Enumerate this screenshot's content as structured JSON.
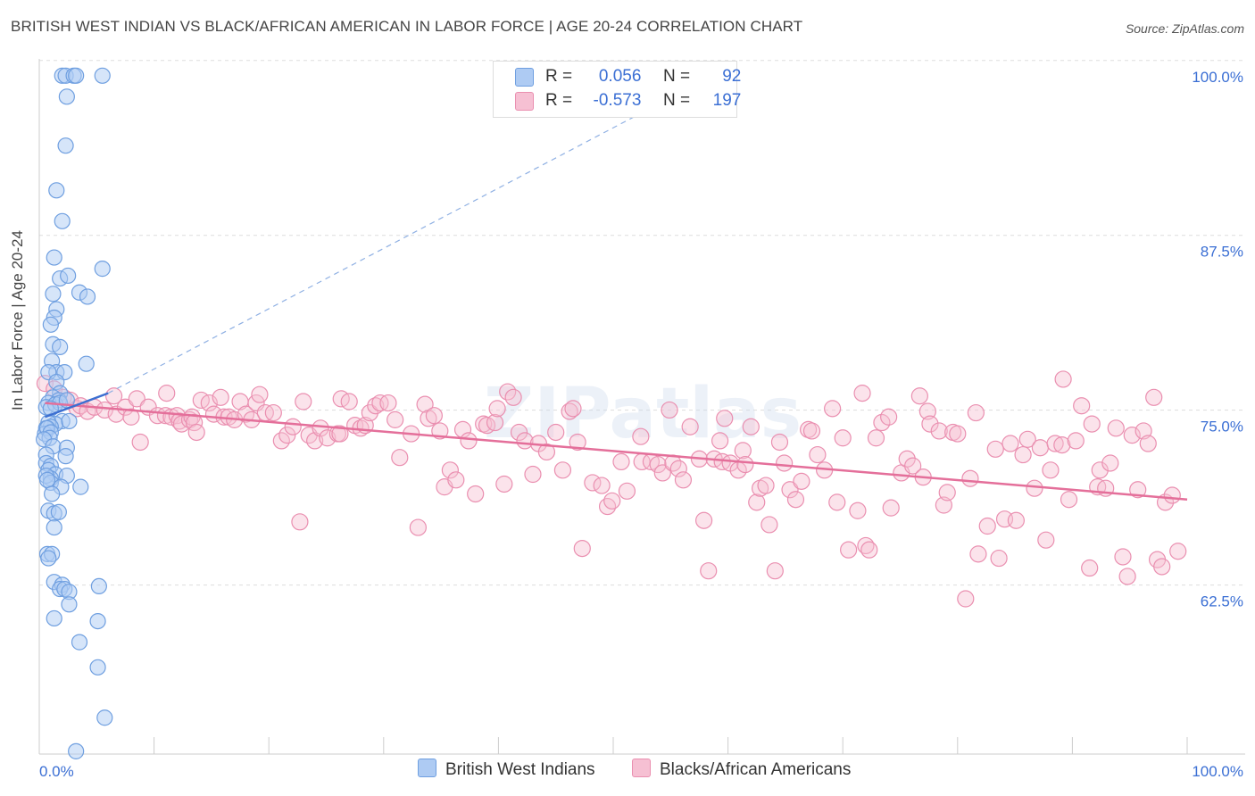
{
  "title": "BRITISH WEST INDIAN VS BLACK/AFRICAN AMERICAN IN LABOR FORCE | AGE 20-24 CORRELATION CHART",
  "source": "Source: ZipAtlas.com",
  "watermark": "ZIPatlas",
  "colors": {
    "blue_fill": "#aecbf3",
    "blue_stroke": "#6f9fe0",
    "blue_line": "#3c6fd1",
    "pink_fill": "#f6c0d3",
    "pink_stroke": "#ea8fb0",
    "pink_line": "#e46f9a",
    "axis_label": "#3b6fd4",
    "grid": "#dddddd"
  },
  "legend_top": [
    {
      "r_label": "R =",
      "r_value": "0.056",
      "n_label": "N =",
      "n_value": "92"
    },
    {
      "r_label": "R =",
      "r_value": "-0.573",
      "n_label": "N =",
      "n_value": "197"
    }
  ],
  "chart_data": {
    "type": "scatter",
    "xlabel": "",
    "ylabel": "In Labor Force | Age 20-24",
    "x_tick_labels": [
      "0.0%",
      "100.0%"
    ],
    "y_tick_labels": [
      "100.0%",
      "87.5%",
      "75.0%",
      "62.5%"
    ],
    "xlim": [
      0,
      100
    ],
    "ylim": [
      51.5,
      101.2
    ],
    "grid": true,
    "legend_position": "bottom",
    "series": [
      {
        "name": "British West Indians",
        "color": "blue",
        "trend": {
          "x": [
            0.5,
            6
          ],
          "y": [
            75.6,
            77.3
          ]
        },
        "trend_extension": {
          "x": [
            6,
            54
          ],
          "y": [
            77.3,
            98.0
          ]
        },
        "points": [
          [
            2,
            100
          ],
          [
            2.3,
            100
          ],
          [
            3,
            100
          ],
          [
            3.2,
            100
          ],
          [
            5.5,
            100
          ],
          [
            2.4,
            98.5
          ],
          [
            2.3,
            95
          ],
          [
            1.5,
            91.8
          ],
          [
            2,
            89.6
          ],
          [
            1.3,
            87
          ],
          [
            5.5,
            86.2
          ],
          [
            1.8,
            85.5
          ],
          [
            2.5,
            85.7
          ],
          [
            3.5,
            84.5
          ],
          [
            4.2,
            84.2
          ],
          [
            1.2,
            84.4
          ],
          [
            1.5,
            83.3
          ],
          [
            1.3,
            82.7
          ],
          [
            1,
            82.2
          ],
          [
            1.2,
            80.8
          ],
          [
            1.8,
            80.6
          ],
          [
            4.1,
            79.4
          ],
          [
            1.1,
            79.6
          ],
          [
            1.5,
            78.8
          ],
          [
            2.2,
            78.8
          ],
          [
            0.8,
            78.8
          ],
          [
            1.5,
            78.1
          ],
          [
            1.8,
            77.3
          ],
          [
            1.2,
            77
          ],
          [
            1.7,
            76.8
          ],
          [
            0.8,
            76.6
          ],
          [
            0.6,
            76.3
          ],
          [
            1.4,
            76.5
          ],
          [
            1.8,
            76.6
          ],
          [
            2.4,
            76.8
          ],
          [
            1,
            76.2
          ],
          [
            2,
            75.3
          ],
          [
            1.4,
            75.1
          ],
          [
            0.8,
            75.2
          ],
          [
            1,
            74.9
          ],
          [
            2.6,
            75.3
          ],
          [
            0.6,
            74.8
          ],
          [
            0.5,
            74.4
          ],
          [
            0.7,
            74.8
          ],
          [
            1,
            74.5
          ],
          [
            0.9,
            74.1
          ],
          [
            0.4,
            74
          ],
          [
            1.2,
            73.5
          ],
          [
            2.4,
            73.4
          ],
          [
            0.6,
            72.9
          ],
          [
            2.3,
            72.8
          ],
          [
            0.6,
            72.3
          ],
          [
            1,
            72.1
          ],
          [
            0.8,
            71.8
          ],
          [
            1.4,
            71.5
          ],
          [
            1,
            71.2
          ],
          [
            0.6,
            71.4
          ],
          [
            2.4,
            71.4
          ],
          [
            1,
            70.9
          ],
          [
            0.7,
            71.1
          ],
          [
            1.9,
            70.6
          ],
          [
            3.6,
            70.6
          ],
          [
            1.1,
            70.1
          ],
          [
            0.8,
            68.9
          ],
          [
            1.3,
            68.7
          ],
          [
            1.7,
            68.8
          ],
          [
            1.3,
            67.7
          ],
          [
            0.7,
            65.8
          ],
          [
            1.1,
            65.8
          ],
          [
            0.8,
            65.5
          ],
          [
            1.3,
            63.8
          ],
          [
            2,
            63.6
          ],
          [
            1.8,
            63.3
          ],
          [
            2.2,
            63.3
          ],
          [
            5.2,
            63.5
          ],
          [
            2.6,
            63.1
          ],
          [
            2.6,
            62.2
          ],
          [
            1.3,
            61.2
          ],
          [
            5.1,
            61
          ],
          [
            3.5,
            59.5
          ],
          [
            5.1,
            57.7
          ],
          [
            5.7,
            54.1
          ],
          [
            3.2,
            51.7
          ]
        ]
      },
      {
        "name": "Blacks/African Americans",
        "color": "pink",
        "trend": {
          "x": [
            0.5,
            100
          ],
          "y": [
            76.6,
            69.7
          ]
        },
        "points": [
          [
            0.5,
            78
          ],
          [
            1.3,
            77.6
          ],
          [
            2.1,
            77
          ],
          [
            2.7,
            76.8
          ],
          [
            3.3,
            76.2
          ],
          [
            3.6,
            76.4
          ],
          [
            4.2,
            76
          ],
          [
            4.8,
            76.3
          ],
          [
            5.7,
            76.1
          ],
          [
            6.5,
            77.1
          ],
          [
            6.7,
            75.8
          ],
          [
            7.5,
            76.3
          ],
          [
            8,
            75.6
          ],
          [
            8.5,
            76.9
          ],
          [
            8.8,
            73.8
          ],
          [
            9.5,
            76.3
          ],
          [
            10.3,
            75.7
          ],
          [
            11,
            75.7
          ],
          [
            11.1,
            77.3
          ],
          [
            11.5,
            75.6
          ],
          [
            12,
            75.7
          ],
          [
            12.2,
            75.3
          ],
          [
            12.4,
            75.1
          ],
          [
            13.1,
            75.4
          ],
          [
            13.3,
            75.6
          ],
          [
            13.5,
            75.2
          ],
          [
            13.7,
            74.5
          ],
          [
            14.1,
            76.8
          ],
          [
            14.8,
            76.6
          ],
          [
            15.2,
            75.8
          ],
          [
            15.8,
            77
          ],
          [
            16.1,
            75.6
          ],
          [
            16.5,
            75.6
          ],
          [
            17,
            75.4
          ],
          [
            17.5,
            76.7
          ],
          [
            18,
            75.8
          ],
          [
            18.5,
            75.4
          ],
          [
            18.9,
            76.6
          ],
          [
            19.2,
            77.2
          ],
          [
            19.7,
            75.9
          ],
          [
            20.4,
            75.9
          ],
          [
            21.1,
            73.9
          ],
          [
            21.6,
            74.3
          ],
          [
            22.1,
            74.9
          ],
          [
            22.7,
            68.1
          ],
          [
            23,
            76.7
          ],
          [
            23.5,
            74.3
          ],
          [
            24,
            73.9
          ],
          [
            24.5,
            74.8
          ],
          [
            25.1,
            74.1
          ],
          [
            26,
            74.4
          ],
          [
            26.2,
            74.4
          ],
          [
            26.3,
            76.9
          ],
          [
            27,
            76.7
          ],
          [
            27.5,
            75
          ],
          [
            28,
            74.8
          ],
          [
            28.4,
            75
          ],
          [
            28.8,
            75.9
          ],
          [
            29.3,
            76.4
          ],
          [
            29.7,
            76.6
          ],
          [
            30.4,
            76.6
          ],
          [
            31,
            75.4
          ],
          [
            31.4,
            72.7
          ],
          [
            32.4,
            74.4
          ],
          [
            33,
            67.7
          ],
          [
            33.6,
            76.5
          ],
          [
            33.9,
            75.5
          ],
          [
            34.4,
            75.7
          ],
          [
            34.9,
            74.6
          ],
          [
            35.3,
            70.6
          ],
          [
            35.8,
            71.8
          ],
          [
            36.3,
            71.1
          ],
          [
            36.9,
            74.7
          ],
          [
            37.4,
            73.9
          ],
          [
            38,
            70.1
          ],
          [
            38.7,
            75.1
          ],
          [
            39,
            75
          ],
          [
            39.7,
            75.2
          ],
          [
            39.9,
            76.2
          ],
          [
            40.5,
            70.8
          ],
          [
            40.8,
            77.4
          ],
          [
            41.3,
            77
          ],
          [
            41.8,
            74.5
          ],
          [
            42.3,
            73.9
          ],
          [
            43,
            71.5
          ],
          [
            43.5,
            73.7
          ],
          [
            44.2,
            73.1
          ],
          [
            45,
            74.5
          ],
          [
            45.6,
            71.8
          ],
          [
            46.2,
            76
          ],
          [
            46.5,
            76.2
          ],
          [
            46.9,
            73.8
          ],
          [
            47.3,
            66.2
          ],
          [
            48.2,
            70.9
          ],
          [
            49,
            70.7
          ],
          [
            49.5,
            69.2
          ],
          [
            49.9,
            69.6
          ],
          [
            50.7,
            72.4
          ],
          [
            51.2,
            70.3
          ],
          [
            52.5,
            72.4
          ],
          [
            52.4,
            74.2
          ],
          [
            53.3,
            72.4
          ],
          [
            53.9,
            72.2
          ],
          [
            54.3,
            71.6
          ],
          [
            54.9,
            76.1
          ],
          [
            55.2,
            72.3
          ],
          [
            55.7,
            71.9
          ],
          [
            56.1,
            71.1
          ],
          [
            56.7,
            74.9
          ],
          [
            57.5,
            72.6
          ],
          [
            57.9,
            68.2
          ],
          [
            58.3,
            64.6
          ],
          [
            58.8,
            72.6
          ],
          [
            59.3,
            73.9
          ],
          [
            59.5,
            72.4
          ],
          [
            59.7,
            75.5
          ],
          [
            60.2,
            72.3
          ],
          [
            60.9,
            71.8
          ],
          [
            61.3,
            73.2
          ],
          [
            61.5,
            72.2
          ],
          [
            62,
            74.9
          ],
          [
            62.5,
            69.5
          ],
          [
            62.8,
            70.5
          ],
          [
            63.3,
            70.7
          ],
          [
            63.6,
            67.9
          ],
          [
            64.1,
            64.6
          ],
          [
            64.5,
            73.8
          ],
          [
            64.9,
            72.3
          ],
          [
            65.4,
            70.4
          ],
          [
            65.9,
            69.7
          ],
          [
            66.4,
            71
          ],
          [
            67,
            74.7
          ],
          [
            67.3,
            74.6
          ],
          [
            67.8,
            72.9
          ],
          [
            68.4,
            71.8
          ],
          [
            69.1,
            76.2
          ],
          [
            69.5,
            69.5
          ],
          [
            70,
            74.1
          ],
          [
            70.5,
            66.1
          ],
          [
            71.3,
            68.9
          ],
          [
            71.7,
            77.3
          ],
          [
            72,
            66.4
          ],
          [
            72.3,
            66.1
          ],
          [
            72.9,
            74.1
          ],
          [
            73.4,
            75.2
          ],
          [
            74,
            75.6
          ],
          [
            74.2,
            69.1
          ],
          [
            75.1,
            71.6
          ],
          [
            75.6,
            72.6
          ],
          [
            76.1,
            72.1
          ],
          [
            76.7,
            77.1
          ],
          [
            77,
            71.3
          ],
          [
            77.4,
            76
          ],
          [
            77.6,
            75.1
          ],
          [
            78.8,
            69.3
          ],
          [
            78.4,
            74.6
          ],
          [
            79.1,
            70.2
          ],
          [
            79.6,
            74.5
          ],
          [
            80,
            74.4
          ],
          [
            80.7,
            62.6
          ],
          [
            81.1,
            71.2
          ],
          [
            81.6,
            75.9
          ],
          [
            81.8,
            65.8
          ],
          [
            82.6,
            67.8
          ],
          [
            83.3,
            73.3
          ],
          [
            83.6,
            65.5
          ],
          [
            84.1,
            68.3
          ],
          [
            84.6,
            73.7
          ],
          [
            85.1,
            68.2
          ],
          [
            85.7,
            72.9
          ],
          [
            86.1,
            74
          ],
          [
            86.7,
            70.5
          ],
          [
            87.2,
            73.4
          ],
          [
            87.7,
            66.8
          ],
          [
            88.1,
            71.8
          ],
          [
            88.5,
            73.7
          ],
          [
            89.1,
            73.6
          ],
          [
            89.7,
            69.7
          ],
          [
            89.2,
            78.3
          ],
          [
            90.3,
            73.9
          ],
          [
            90.8,
            76.4
          ],
          [
            91.5,
            64.8
          ],
          [
            91.7,
            75.1
          ],
          [
            92.2,
            70.6
          ],
          [
            92.4,
            71.8
          ],
          [
            92.9,
            70.5
          ],
          [
            93.3,
            72.3
          ],
          [
            93.8,
            74.8
          ],
          [
            94.4,
            65.6
          ],
          [
            94.8,
            64.2
          ],
          [
            95.2,
            74.3
          ],
          [
            95.7,
            70.4
          ],
          [
            96.2,
            74.6
          ],
          [
            96.6,
            73.7
          ],
          [
            97.1,
            77
          ],
          [
            97.4,
            65.4
          ],
          [
            97.8,
            64.9
          ],
          [
            98.1,
            69.5
          ],
          [
            98.7,
            70
          ],
          [
            99.2,
            66
          ]
        ]
      }
    ]
  }
}
